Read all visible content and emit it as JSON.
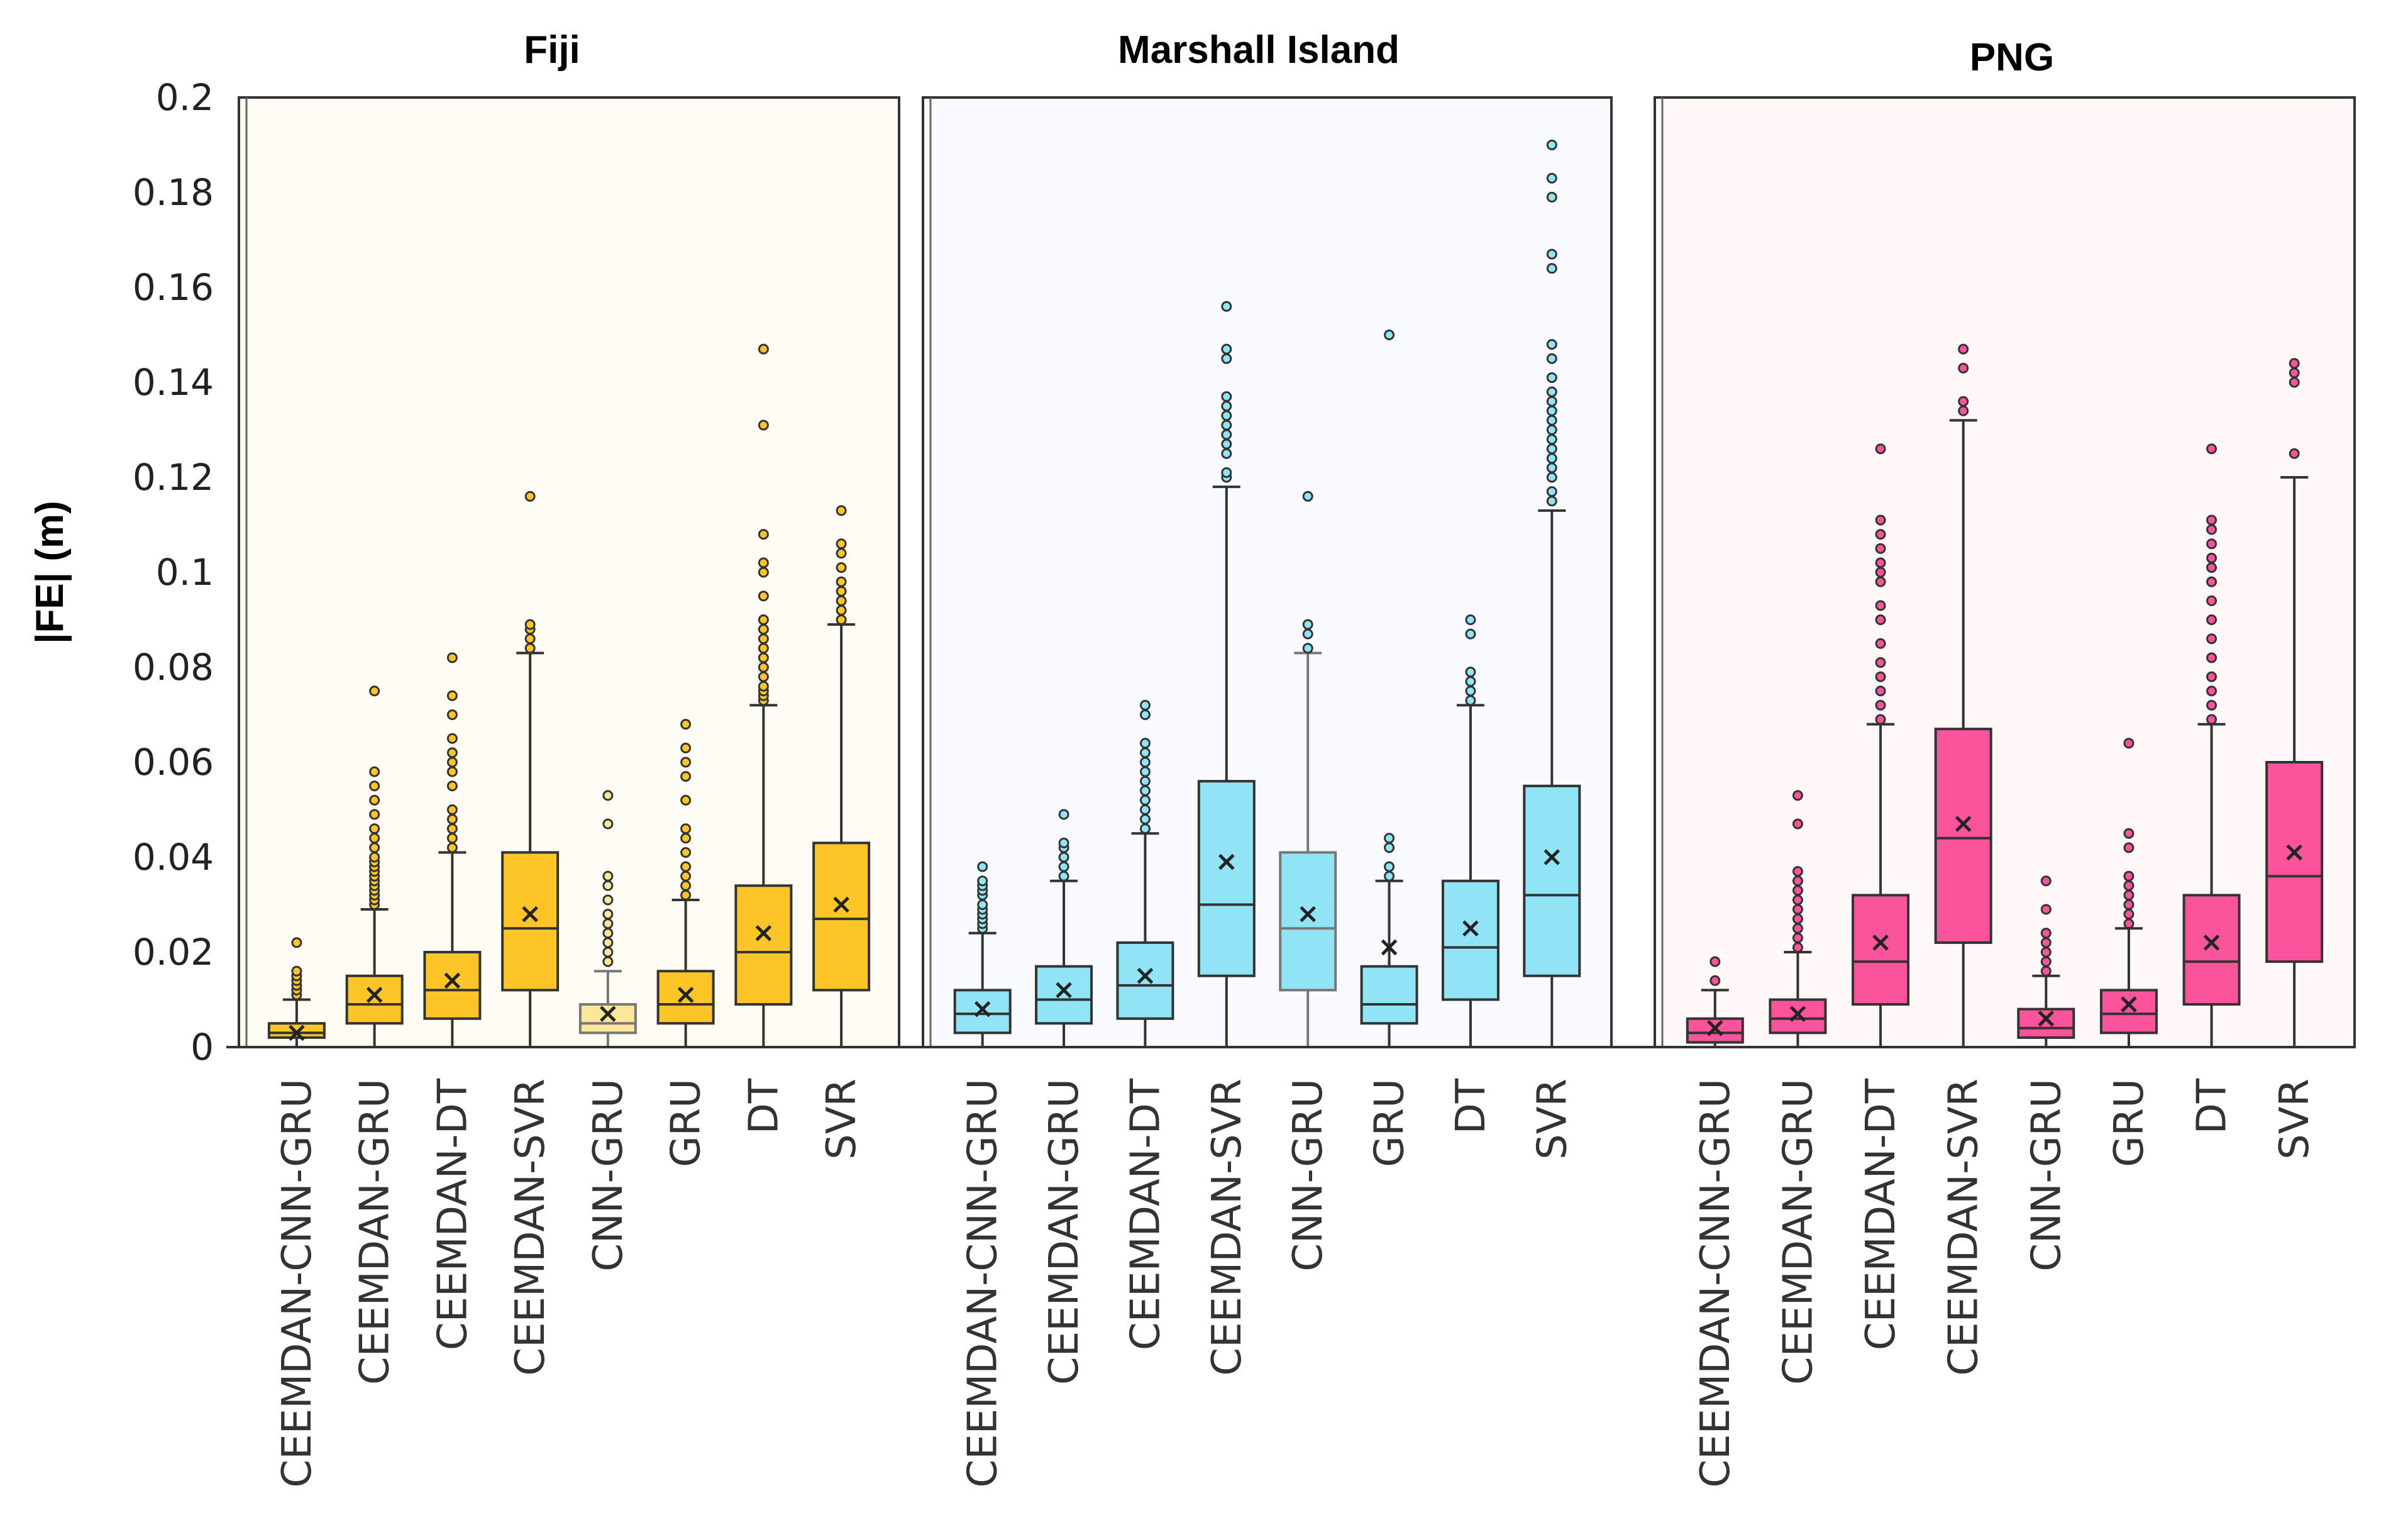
{
  "chart_data": {
    "type": "boxplot",
    "ylabel": "|FE| (m)",
    "ylim": [
      0,
      0.2
    ],
    "yticks": [
      "0",
      "0.02",
      "0.04",
      "0.06",
      "0.08",
      "0.1",
      "0.12",
      "0.14",
      "0.16",
      "0.18",
      "0.2"
    ],
    "categories": [
      "CEEMDAN-CNN-GRU",
      "CEEMDAN-GRU",
      "CEEMDAN-DT",
      "CEEMDAN-SVR",
      "CNN-GRU",
      "GRU",
      "DT",
      "SVR"
    ],
    "panels": [
      {
        "title": "Fiji",
        "fill": "#fdc628",
        "light_fill": "#fde79a",
        "background": "#fffcf4",
        "boxes": [
          {
            "min": 0,
            "q1": 0.002,
            "median": 0.003,
            "q3": 0.005,
            "max": 0.01,
            "mean": 0.003,
            "outliers": [
              0.011,
              0.012,
              0.013,
              0.014,
              0.015,
              0.016,
              0.022
            ]
          },
          {
            "min": 0,
            "q1": 0.005,
            "median": 0.009,
            "q3": 0.015,
            "max": 0.029,
            "mean": 0.011,
            "outliers": [
              0.03,
              0.031,
              0.032,
              0.033,
              0.034,
              0.035,
              0.036,
              0.037,
              0.038,
              0.039,
              0.04,
              0.042,
              0.044,
              0.046,
              0.049,
              0.052,
              0.055,
              0.058,
              0.075
            ]
          },
          {
            "min": 0,
            "q1": 0.006,
            "median": 0.012,
            "q3": 0.02,
            "max": 0.041,
            "mean": 0.014,
            "outliers": [
              0.042,
              0.044,
              0.046,
              0.048,
              0.05,
              0.055,
              0.058,
              0.06,
              0.062,
              0.065,
              0.07,
              0.074,
              0.082
            ]
          },
          {
            "min": 0,
            "q1": 0.012,
            "median": 0.025,
            "q3": 0.041,
            "max": 0.083,
            "mean": 0.028,
            "outliers": [
              0.084,
              0.086,
              0.088,
              0.089,
              0.116
            ]
          },
          {
            "min": 0,
            "q1": 0.003,
            "median": 0.005,
            "q3": 0.009,
            "max": 0.016,
            "mean": 0.007,
            "outliers": [
              0.018,
              0.02,
              0.022,
              0.024,
              0.026,
              0.028,
              0.031,
              0.034,
              0.036,
              0.047,
              0.053
            ],
            "light": true
          },
          {
            "min": 0,
            "q1": 0.005,
            "median": 0.009,
            "q3": 0.016,
            "max": 0.031,
            "mean": 0.011,
            "outliers": [
              0.032,
              0.034,
              0.036,
              0.038,
              0.041,
              0.044,
              0.046,
              0.052,
              0.057,
              0.06,
              0.063,
              0.068
            ]
          },
          {
            "min": 0,
            "q1": 0.009,
            "median": 0.02,
            "q3": 0.034,
            "max": 0.072,
            "mean": 0.024,
            "outliers": [
              0.073,
              0.074,
              0.075,
              0.076,
              0.078,
              0.08,
              0.082,
              0.084,
              0.086,
              0.088,
              0.09,
              0.095,
              0.1,
              0.102,
              0.108,
              0.131,
              0.147
            ]
          },
          {
            "min": 0,
            "q1": 0.012,
            "median": 0.027,
            "q3": 0.043,
            "max": 0.089,
            "mean": 0.03,
            "outliers": [
              0.09,
              0.092,
              0.094,
              0.096,
              0.098,
              0.101,
              0.104,
              0.106,
              0.113
            ]
          }
        ]
      },
      {
        "title": "Marshall Island",
        "fill": "#8fe4f5",
        "light_fill": "#8fe4f5",
        "background": "#f8fbff",
        "boxes": [
          {
            "min": 0,
            "q1": 0.003,
            "median": 0.007,
            "q3": 0.012,
            "max": 0.024,
            "mean": 0.008,
            "outliers": [
              0.025,
              0.026,
              0.027,
              0.028,
              0.029,
              0.03,
              0.032,
              0.033,
              0.034,
              0.035,
              0.038
            ]
          },
          {
            "min": 0,
            "q1": 0.005,
            "median": 0.01,
            "q3": 0.017,
            "max": 0.035,
            "mean": 0.012,
            "outliers": [
              0.036,
              0.038,
              0.04,
              0.042,
              0.043,
              0.049
            ]
          },
          {
            "min": 0,
            "q1": 0.006,
            "median": 0.013,
            "q3": 0.022,
            "max": 0.045,
            "mean": 0.015,
            "outliers": [
              0.046,
              0.048,
              0.05,
              0.052,
              0.054,
              0.056,
              0.058,
              0.06,
              0.062,
              0.064,
              0.07,
              0.072
            ]
          },
          {
            "min": 0,
            "q1": 0.015,
            "median": 0.03,
            "q3": 0.056,
            "max": 0.118,
            "mean": 0.039,
            "outliers": [
              0.12,
              0.121,
              0.125,
              0.127,
              0.129,
              0.131,
              0.133,
              0.135,
              0.137,
              0.145,
              0.147,
              0.156
            ]
          },
          {
            "min": 0,
            "q1": 0.012,
            "median": 0.025,
            "q3": 0.041,
            "max": 0.083,
            "mean": 0.028,
            "outliers": [
              0.084,
              0.087,
              0.089,
              0.116
            ],
            "light": true
          },
          {
            "min": 0,
            "q1": 0.005,
            "median": 0.009,
            "q3": 0.017,
            "max": 0.035,
            "mean": 0.021,
            "outliers": [
              0.036,
              0.038,
              0.042,
              0.044,
              0.15
            ]
          },
          {
            "min": 0,
            "q1": 0.01,
            "median": 0.021,
            "q3": 0.035,
            "max": 0.072,
            "mean": 0.025,
            "outliers": [
              0.073,
              0.075,
              0.077,
              0.079,
              0.087,
              0.09
            ]
          },
          {
            "min": 0,
            "q1": 0.015,
            "median": 0.032,
            "q3": 0.055,
            "max": 0.113,
            "mean": 0.04,
            "outliers": [
              0.115,
              0.117,
              0.12,
              0.122,
              0.124,
              0.126,
              0.128,
              0.13,
              0.132,
              0.134,
              0.136,
              0.138,
              0.141,
              0.145,
              0.148,
              0.164,
              0.167,
              0.179,
              0.183,
              0.19
            ]
          }
        ]
      },
      {
        "title": "PNG",
        "fill": "#fc549c",
        "light_fill": "#fc549c",
        "background": "#fff8f6",
        "boxes": [
          {
            "min": 0,
            "q1": 0.001,
            "median": 0.003,
            "q3": 0.006,
            "max": 0.012,
            "mean": 0.004,
            "outliers": [
              0.014,
              0.018
            ]
          },
          {
            "min": 0,
            "q1": 0.003,
            "median": 0.006,
            "q3": 0.01,
            "max": 0.02,
            "mean": 0.007,
            "outliers": [
              0.021,
              0.023,
              0.025,
              0.027,
              0.029,
              0.031,
              0.033,
              0.035,
              0.037,
              0.047,
              0.053
            ]
          },
          {
            "min": 0,
            "q1": 0.009,
            "median": 0.018,
            "q3": 0.032,
            "max": 0.068,
            "mean": 0.022,
            "outliers": [
              0.069,
              0.072,
              0.075,
              0.078,
              0.081,
              0.085,
              0.09,
              0.093,
              0.098,
              0.1,
              0.102,
              0.105,
              0.108,
              0.111,
              0.126
            ]
          },
          {
            "min": 0,
            "q1": 0.022,
            "median": 0.044,
            "q3": 0.067,
            "max": 0.132,
            "mean": 0.047,
            "outliers": [
              0.134,
              0.136,
              0.143,
              0.147
            ]
          },
          {
            "min": 0,
            "q1": 0.002,
            "median": 0.004,
            "q3": 0.008,
            "max": 0.015,
            "mean": 0.006,
            "outliers": [
              0.016,
              0.018,
              0.02,
              0.022,
              0.024,
              0.029,
              0.035
            ]
          },
          {
            "min": 0,
            "q1": 0.003,
            "median": 0.007,
            "q3": 0.012,
            "max": 0.025,
            "mean": 0.009,
            "outliers": [
              0.026,
              0.028,
              0.03,
              0.032,
              0.034,
              0.036,
              0.042,
              0.045,
              0.064
            ]
          },
          {
            "min": 0,
            "q1": 0.009,
            "median": 0.018,
            "q3": 0.032,
            "max": 0.068,
            "mean": 0.022,
            "outliers": [
              0.069,
              0.072,
              0.075,
              0.078,
              0.082,
              0.086,
              0.09,
              0.094,
              0.098,
              0.101,
              0.103,
              0.106,
              0.109,
              0.111,
              0.126
            ]
          },
          {
            "min": 0,
            "q1": 0.018,
            "median": 0.036,
            "q3": 0.06,
            "max": 0.12,
            "mean": 0.041,
            "outliers": [
              0.125,
              0.14,
              0.142,
              0.144
            ]
          }
        ]
      }
    ]
  }
}
